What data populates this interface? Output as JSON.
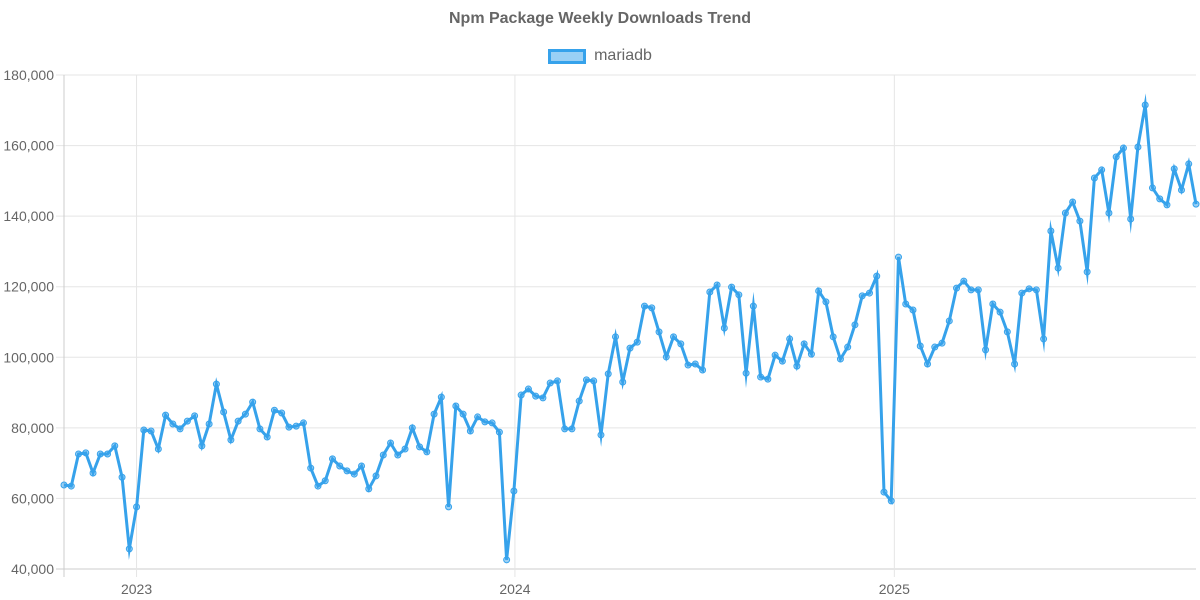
{
  "chart_data": {
    "type": "line",
    "title": "Npm Package Weekly Downloads Trend",
    "xlabel": "",
    "ylabel": "",
    "ylim": [
      40000,
      180000
    ],
    "yticks": [
      "40,000",
      "60,000",
      "80,000",
      "100,000",
      "120,000",
      "140,000",
      "160,000",
      "180,000"
    ],
    "xticks": [
      "2023",
      "2024",
      "2025"
    ],
    "grid": true,
    "legend_position": "top",
    "colors": {
      "line": "#36a2eb",
      "fill": "rgba(54,162,235,0.5)"
    },
    "x": [
      "2022-10-23",
      "2022-10-30",
      "2022-11-06",
      "2022-11-13",
      "2022-11-20",
      "2022-11-27",
      "2022-12-04",
      "2022-12-11",
      "2022-12-18",
      "2022-12-25",
      "2023-01-01",
      "2023-01-08",
      "2023-01-15",
      "2023-01-22",
      "2023-01-29",
      "2023-02-05",
      "2023-02-12",
      "2023-02-19",
      "2023-02-26",
      "2023-03-05",
      "2023-03-12",
      "2023-03-19",
      "2023-03-26",
      "2023-04-02",
      "2023-04-09",
      "2023-04-16",
      "2023-04-23",
      "2023-04-30",
      "2023-05-07",
      "2023-05-14",
      "2023-05-21",
      "2023-05-28",
      "2023-06-04",
      "2023-06-11",
      "2023-06-18",
      "2023-06-25",
      "2023-07-02",
      "2023-07-09",
      "2023-07-16",
      "2023-07-23",
      "2023-07-30",
      "2023-08-06",
      "2023-08-13",
      "2023-08-20",
      "2023-08-27",
      "2023-09-03",
      "2023-09-10",
      "2023-09-17",
      "2023-09-24",
      "2023-10-01",
      "2023-10-08",
      "2023-10-15",
      "2023-10-22",
      "2023-10-29",
      "2023-11-05",
      "2023-11-12",
      "2023-11-19",
      "2023-11-26",
      "2023-12-03",
      "2023-12-10",
      "2023-12-17",
      "2023-12-24",
      "2023-12-31",
      "2024-01-07",
      "2024-01-14",
      "2024-01-21",
      "2024-01-28",
      "2024-02-04",
      "2024-02-11",
      "2024-02-18",
      "2024-02-25",
      "2024-03-03",
      "2024-03-10",
      "2024-03-17",
      "2024-03-24",
      "2024-03-31",
      "2024-04-07",
      "2024-04-14",
      "2024-04-21",
      "2024-04-28",
      "2024-05-05",
      "2024-05-12",
      "2024-05-19",
      "2024-05-26",
      "2024-06-02",
      "2024-06-09",
      "2024-06-16",
      "2024-06-23",
      "2024-06-30",
      "2024-07-07",
      "2024-07-14",
      "2024-07-21",
      "2024-07-28",
      "2024-08-04",
      "2024-08-11",
      "2024-08-18",
      "2024-08-25",
      "2024-09-01",
      "2024-09-08",
      "2024-09-15",
      "2024-09-22",
      "2024-09-29",
      "2024-10-06",
      "2024-10-13",
      "2024-10-20",
      "2024-10-27",
      "2024-11-03",
      "2024-11-10",
      "2024-11-17",
      "2024-11-24",
      "2024-12-01",
      "2024-12-08",
      "2024-12-15",
      "2024-12-22",
      "2024-12-29",
      "2025-01-05",
      "2025-01-12",
      "2025-01-19",
      "2025-01-26",
      "2025-02-02",
      "2025-02-09",
      "2025-02-16",
      "2025-02-23",
      "2025-03-02",
      "2025-03-09",
      "2025-03-16",
      "2025-03-23",
      "2025-03-30",
      "2025-04-06",
      "2025-04-13",
      "2025-04-20",
      "2025-04-27",
      "2025-05-04",
      "2025-05-11",
      "2025-05-18",
      "2025-05-25",
      "2025-06-01",
      "2025-06-08",
      "2025-06-15",
      "2025-06-22",
      "2025-06-29",
      "2025-07-06",
      "2025-07-13",
      "2025-07-20",
      "2025-07-27",
      "2025-08-03",
      "2025-08-10",
      "2025-08-17",
      "2025-08-24",
      "2025-08-31",
      "2025-09-07",
      "2025-09-14",
      "2025-09-21",
      "2025-09-28",
      "2025-10-05",
      "2025-10-12",
      "2025-10-19"
    ],
    "series": [
      {
        "name": "mariadb",
        "values": [
          63800,
          63500,
          72600,
          72900,
          67200,
          72600,
          72600,
          74900,
          66000,
          45700,
          57600,
          79400,
          79100,
          74000,
          83600,
          81100,
          79700,
          81900,
          83400,
          74900,
          81100,
          92400,
          84500,
          76600,
          81900,
          83900,
          87300,
          79700,
          77400,
          85000,
          84200,
          80200,
          80500,
          81400,
          68600,
          63500,
          65000,
          71200,
          69200,
          67800,
          66900,
          69200,
          62700,
          66400,
          72300,
          75700,
          72300,
          74000,
          80000,
          74600,
          73200,
          83900,
          88700,
          57600,
          86200,
          83900,
          79100,
          83100,
          81700,
          81400,
          78800,
          42600,
          62100,
          89300,
          91000,
          89000,
          88500,
          92700,
          93300,
          79700,
          79700,
          87600,
          93600,
          93300,
          78000,
          95300,
          105800,
          93000,
          102600,
          104300,
          114500,
          114000,
          107200,
          100100,
          105800,
          103800,
          97800,
          98100,
          96400,
          118500,
          120500,
          108300,
          119900,
          117700,
          95500,
          114500,
          94400,
          93800,
          100600,
          98900,
          105200,
          97500,
          103800,
          100900,
          118800,
          115700,
          105800,
          99500,
          102900,
          109200,
          117400,
          118200,
          123000,
          61800,
          59300,
          128400,
          115100,
          113400,
          103200,
          98100,
          102900,
          104000,
          110300,
          119600,
          121600,
          119100,
          119100,
          102100,
          115100,
          112800,
          107200,
          98100,
          118200,
          119400,
          119100,
          105200,
          135800,
          125300,
          140900,
          144000,
          138600,
          124200,
          150800,
          153100,
          140900,
          156800,
          159300,
          139200,
          159600,
          171500,
          148000,
          144900,
          143200,
          153400,
          147400,
          154800,
          143400
        ]
      }
    ]
  }
}
